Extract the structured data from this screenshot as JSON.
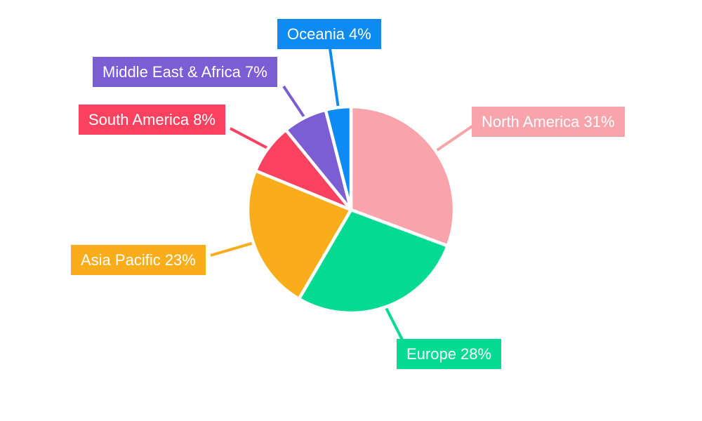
{
  "chart_data": {
    "type": "pie",
    "title": "",
    "categories": [
      "North America",
      "Europe",
      "Asia Pacific",
      "South America",
      "Middle East & Africa",
      "Oceania"
    ],
    "values": [
      31,
      28,
      23,
      8,
      7,
      4
    ],
    "unit": "%",
    "labels": [
      "North America 31%",
      "Europe 28%",
      "Asia Pacific 23%",
      "South America 8%",
      "Middle East & Africa 7%",
      "Oceania 4%"
    ],
    "colors": [
      "#F8A4AA",
      "#04DB92",
      "#FAAD1A",
      "#FA4260",
      "#7B5ED3",
      "#0E8BF2"
    ],
    "slice_gap_color": "#FFFFFF",
    "text_color": "#FFFFFF",
    "background_color": "#FFFFFF",
    "start_angle_deg": 0,
    "direction": "clockwise",
    "legend_position": "none",
    "label_style": "callout-boxes-with-leader-lines"
  }
}
